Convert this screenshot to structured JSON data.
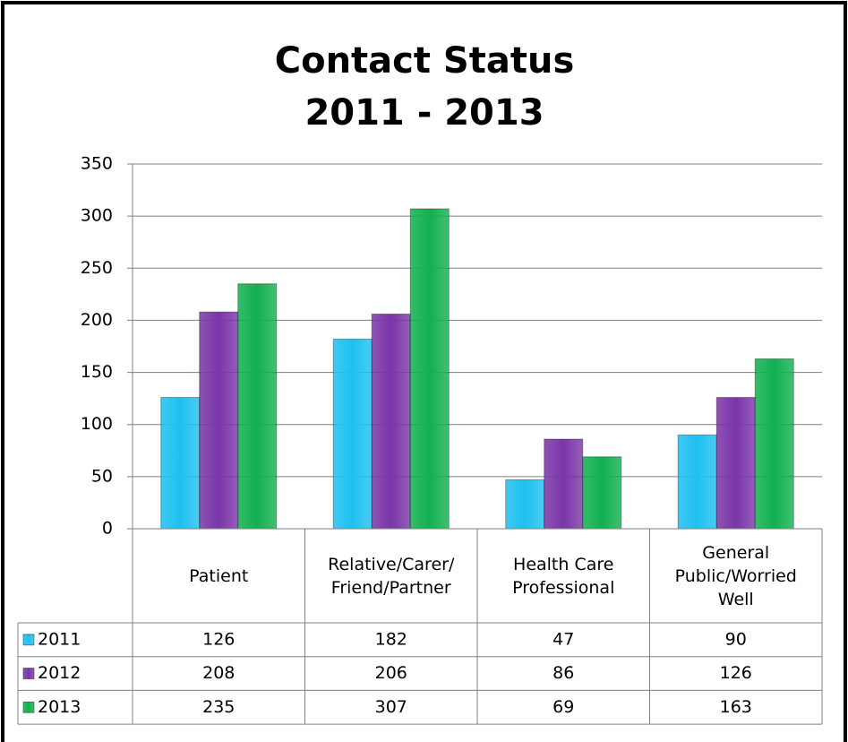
{
  "chart_data": {
    "type": "bar",
    "title": "Contact Status",
    "subtitle": "2011 - 2013",
    "categories": [
      "Patient",
      "Relative/Carer/\nFriend/Partner",
      "Health Care\nProfessional",
      "General\nPublic/Worried\nWell"
    ],
    "series": [
      {
        "name": "2011",
        "color": "#1ec0f0",
        "values": [
          126,
          182,
          47,
          90
        ]
      },
      {
        "name": "2012",
        "color": "#7a35a8",
        "values": [
          208,
          206,
          86,
          126
        ]
      },
      {
        "name": "2013",
        "color": "#12b04f",
        "values": [
          235,
          307,
          69,
          163
        ]
      }
    ],
    "ylim": [
      0,
      350
    ],
    "yticks": [
      0,
      50,
      100,
      150,
      200,
      250,
      300,
      350
    ],
    "grid": true,
    "data_table": true
  }
}
